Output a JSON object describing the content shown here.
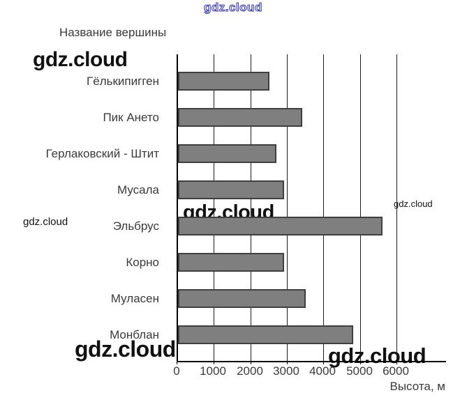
{
  "watermarks": {
    "top": "gdz.cloud",
    "top_left": "gdz.cloud",
    "left_small": "gdz.cloud",
    "center": "gdz.cloud",
    "right_small": "gdz.cloud",
    "bottom_left": "gdz.cloud",
    "bottom_right": "gdz.cloud"
  },
  "chart_data": {
    "type": "bar",
    "orientation": "horizontal",
    "title": "Название вершины",
    "xlabel": "Высота, м",
    "categories": [
      "Гёлькипигген",
      "Пик Ането",
      "Герлаковский - Штит",
      "Мусала",
      "Эльбрус",
      "Корно",
      "Муласен",
      "Монблан"
    ],
    "values": [
      2500,
      3400,
      2700,
      2900,
      5600,
      2900,
      3500,
      4800
    ],
    "x_ticks": [
      0,
      1000,
      2000,
      3000,
      4000,
      5000,
      6000
    ],
    "xlim": [
      0,
      7340
    ],
    "grid": true,
    "legend": "none",
    "bar_color": "#7f7f7f",
    "bar_border_color": "#3f3f3f",
    "axis_color": "#000000",
    "text_color": "#3a3a3a",
    "watermark_blue": "#3c3cb4"
  }
}
